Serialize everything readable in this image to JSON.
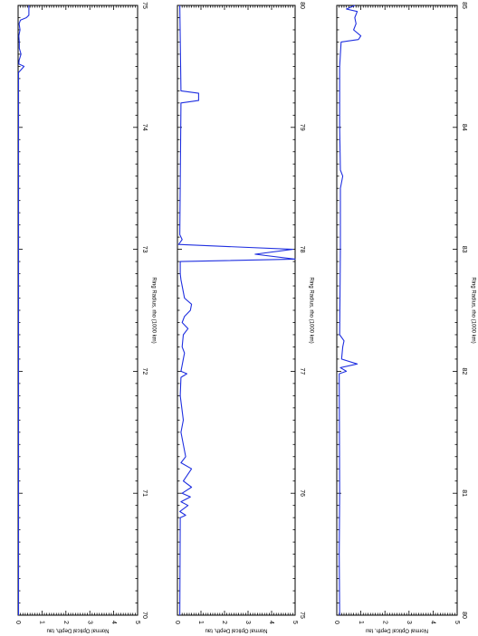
{
  "colors": {
    "series": "#1f2fe0",
    "frame": "#000000",
    "background": "#ffffff"
  },
  "chart_data": [
    {
      "type": "line",
      "orientation": "rotated-90",
      "xlabel": "Ring Radius, rho (1000 km)",
      "ylabel": "Normal Optical Depth, tau",
      "xlim": [
        70,
        75
      ],
      "ylim": [
        0,
        5
      ],
      "x_ticks": [
        70,
        71,
        72,
        73,
        74,
        75
      ],
      "y_ticks": [
        0,
        1,
        2,
        3,
        4,
        5
      ],
      "series": [
        {
          "x": [
            70.0,
            74.45,
            74.5,
            74.52,
            74.55,
            74.6,
            74.65,
            74.7,
            74.75,
            74.8,
            74.85,
            74.88,
            74.9,
            74.92,
            74.95,
            75.0
          ],
          "y": [
            0.02,
            0.02,
            0.25,
            0.03,
            0.04,
            0.12,
            0.05,
            0.05,
            0.03,
            0.08,
            0.04,
            0.1,
            0.35,
            0.45,
            0.45,
            0.45
          ]
        }
      ]
    },
    {
      "type": "line",
      "orientation": "rotated-90",
      "xlabel": "Ring Radius, rho (1000 km)",
      "ylabel": "Normal Optical Depth, tau",
      "xlim": [
        75,
        80
      ],
      "ylim": [
        0,
        5
      ],
      "x_ticks": [
        75,
        76,
        77,
        78,
        79,
        80
      ],
      "y_ticks": [
        0,
        1,
        2,
        3,
        4,
        5
      ],
      "series": [
        {
          "x": [
            75.0,
            75.8,
            75.82,
            75.85,
            75.9,
            75.93,
            75.97,
            76.0,
            76.05,
            76.1,
            76.2,
            76.25,
            76.3,
            76.5,
            76.6,
            76.8,
            76.95,
            76.98,
            77.0,
            77.05,
            77.1,
            77.15,
            77.2,
            77.3,
            77.35,
            77.4,
            77.45,
            77.5,
            77.55,
            77.6,
            77.7,
            77.75,
            77.8,
            77.9,
            77.92,
            77.96,
            78.0,
            78.04,
            78.08,
            78.12,
            79.2,
            79.22,
            79.28,
            79.3,
            80.0
          ],
          "y": [
            0.1,
            0.12,
            0.35,
            0.1,
            0.45,
            0.15,
            0.55,
            0.2,
            0.6,
            0.25,
            0.6,
            0.15,
            0.35,
            0.15,
            0.25,
            0.12,
            0.15,
            0.4,
            0.15,
            0.2,
            0.25,
            0.3,
            0.2,
            0.25,
            0.45,
            0.2,
            0.3,
            0.55,
            0.6,
            0.3,
            0.2,
            0.15,
            0.12,
            0.12,
            5.0,
            3.3,
            4.9,
            0.05,
            0.2,
            0.1,
            0.15,
            0.9,
            0.9,
            0.15,
            0.1
          ]
        }
      ]
    },
    {
      "type": "line",
      "orientation": "rotated-90",
      "xlabel": "Ring Radius, rho (1000 km)",
      "ylabel": "Normal Optical Depth, tau",
      "xlim": [
        80,
        85
      ],
      "ylim": [
        0,
        5
      ],
      "x_ticks": [
        80,
        81,
        82,
        83,
        84,
        85
      ],
      "y_ticks": [
        0,
        1,
        2,
        3,
        4,
        5
      ],
      "series": [
        {
          "x": [
            80.0,
            80.5,
            81.0,
            81.98,
            82.0,
            82.03,
            82.06,
            82.1,
            82.2,
            82.25,
            82.3,
            83.0,
            83.5,
            83.6,
            83.65,
            84.0,
            84.5,
            84.7,
            84.72,
            84.75,
            84.8,
            84.85,
            84.9,
            84.95,
            84.97,
            85.0
          ],
          "y": [
            0.12,
            0.1,
            0.12,
            0.1,
            0.4,
            0.15,
            0.85,
            0.2,
            0.25,
            0.3,
            0.12,
            0.15,
            0.15,
            0.25,
            0.15,
            0.12,
            0.12,
            0.18,
            0.9,
            1.0,
            0.7,
            0.8,
            0.75,
            0.85,
            0.4,
            0.75
          ]
        }
      ]
    }
  ]
}
